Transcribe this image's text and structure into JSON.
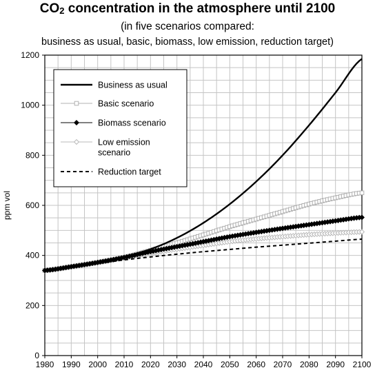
{
  "title": {
    "prefix": "CO",
    "subscript": "2",
    "suffix": " concentration in the atmosphere until 2100"
  },
  "subtitle_1": "(in five scenarios compared:",
  "subtitle_2": "business as usual, basic, biomass, low emission, reduction target)",
  "chart_data": {
    "type": "line",
    "ylabel": "ppm vol",
    "xlabel": "",
    "xlim": [
      1980,
      2100
    ],
    "ylim": [
      0,
      1200
    ],
    "x_ticks": [
      1980,
      1990,
      2000,
      2010,
      2020,
      2030,
      2040,
      2050,
      2060,
      2070,
      2080,
      2090,
      2100
    ],
    "y_ticks": [
      0,
      200,
      400,
      600,
      800,
      1000,
      1200
    ],
    "grid": true,
    "legend_position": "top-left",
    "series": [
      {
        "name": "Business as usual",
        "style": "solid-thick",
        "color": "#000000",
        "x": [
          1980,
          1990,
          2000,
          2010,
          2020,
          2030,
          2040,
          2050,
          2060,
          2070,
          2080,
          2090,
          2100
        ],
        "values": [
          340,
          355,
          372,
          395,
          425,
          470,
          530,
          605,
          695,
          800,
          920,
          1050,
          1185
        ]
      },
      {
        "name": "Basic scenario",
        "style": "open-square-markers",
        "color": "#b0b0b0",
        "x": [
          1980,
          1990,
          2000,
          2010,
          2020,
          2030,
          2040,
          2050,
          2060,
          2070,
          2080,
          2090,
          2100
        ],
        "values": [
          340,
          355,
          372,
          392,
          420,
          450,
          482,
          515,
          545,
          575,
          605,
          630,
          650
        ]
      },
      {
        "name": "Biomass scenario",
        "style": "filled-diamond-markers",
        "color": "#000000",
        "x": [
          1980,
          1990,
          2000,
          2010,
          2020,
          2030,
          2040,
          2050,
          2060,
          2070,
          2080,
          2090,
          2100
        ],
        "values": [
          340,
          355,
          372,
          392,
          415,
          435,
          455,
          475,
          492,
          508,
          523,
          538,
          552
        ]
      },
      {
        "name": "Low emission scenario",
        "style": "open-diamond-markers",
        "color": "#b8b8b8",
        "x": [
          1980,
          1990,
          2000,
          2010,
          2020,
          2030,
          2040,
          2050,
          2060,
          2070,
          2080,
          2090,
          2100
        ],
        "values": [
          340,
          355,
          372,
          390,
          408,
          425,
          440,
          455,
          466,
          475,
          483,
          489,
          494
        ]
      },
      {
        "name": "Reduction target",
        "style": "dashed",
        "color": "#000000",
        "x": [
          1980,
          1990,
          2000,
          2010,
          2020,
          2030,
          2040,
          2050,
          2060,
          2070,
          2080,
          2090,
          2100
        ],
        "values": [
          340,
          355,
          368,
          382,
          394,
          405,
          415,
          424,
          433,
          441,
          449,
          457,
          465
        ]
      }
    ],
    "legend_labels": [
      [
        "Business as usual"
      ],
      [
        "Basic scenario"
      ],
      [
        "Biomass scenario"
      ],
      [
        "Low emission",
        "scenario"
      ],
      [
        "Reduction target"
      ]
    ]
  }
}
